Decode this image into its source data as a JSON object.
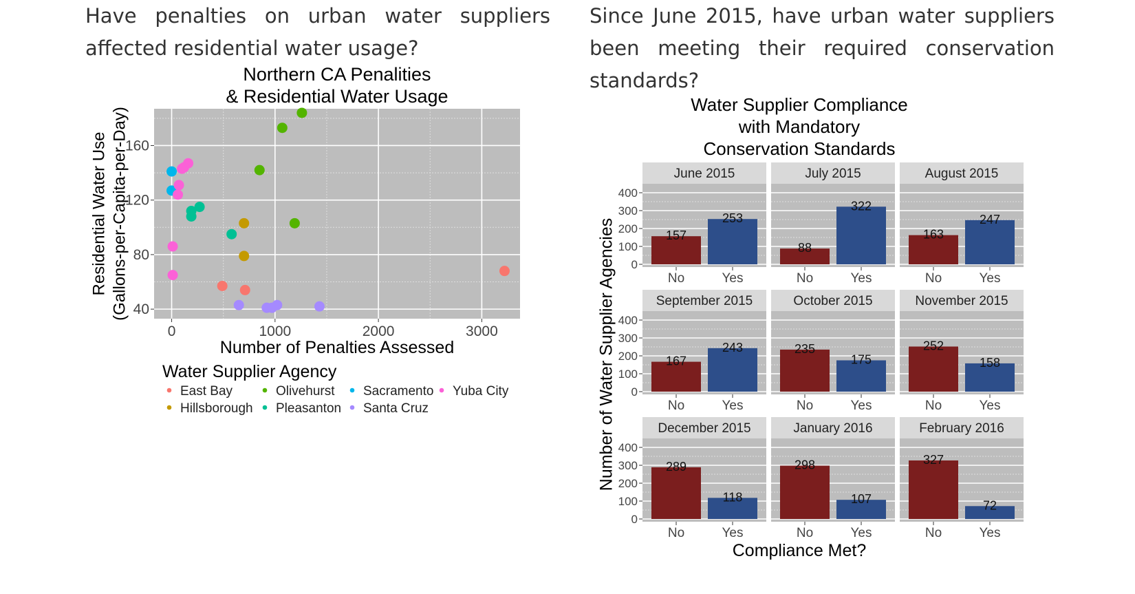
{
  "questions": {
    "left": "Have penalties on urban water suppliers affected residential water usage?",
    "right": "Since June 2015, have urban water suppliers been meeting their required conservation standards?"
  },
  "chart_data": [
    {
      "type": "scatter",
      "title": [
        "Northern CA Penalities",
        "& Residential Water Usage"
      ],
      "xlabel": "Number of Penalties Assessed",
      "ylabel": [
        "Residential Water Use",
        "(Gallons-per-Capita-per-Day)"
      ],
      "xlim": [
        -170,
        3370
      ],
      "ylim": [
        33,
        187
      ],
      "xticks": [
        0,
        1000,
        2000,
        3000
      ],
      "yticks": [
        40,
        80,
        120,
        160
      ],
      "grid": true,
      "legend_title": "Water Supplier Agency",
      "legend_position": "bottom",
      "series": [
        {
          "name": "East Bay",
          "color": "#F8766D",
          "points": [
            [
              490,
              57
            ],
            [
              710,
              54
            ],
            [
              3220,
              68
            ]
          ]
        },
        {
          "name": "Hillsborough",
          "color": "#C49A00",
          "points": [
            [
              700,
              103
            ],
            [
              700,
              79
            ]
          ]
        },
        {
          "name": "Olivehurst",
          "color": "#53B400",
          "points": [
            [
              1260,
              184
            ],
            [
              1070,
              173
            ],
            [
              850,
              142
            ],
            [
              1190,
              103
            ]
          ]
        },
        {
          "name": "Pleasanton",
          "color": "#00C094",
          "points": [
            [
              270,
              115
            ],
            [
              190,
              112
            ],
            [
              190,
              108
            ],
            [
              580,
              95
            ]
          ]
        },
        {
          "name": "Sacramento",
          "color": "#00B6EB",
          "points": [
            [
              0,
              141
            ],
            [
              0,
              127
            ]
          ]
        },
        {
          "name": "Santa Cruz",
          "color": "#A58AFF",
          "points": [
            [
              650,
              43
            ],
            [
              920,
              41
            ],
            [
              970,
              41
            ],
            [
              1020,
              43
            ],
            [
              1430,
              42
            ]
          ]
        },
        {
          "name": "Yuba City",
          "color": "#FB61D7",
          "points": [
            [
              160,
              147
            ],
            [
              120,
              144
            ],
            [
              100,
              143
            ],
            [
              70,
              131
            ],
            [
              60,
              124
            ],
            [
              10,
              86
            ],
            [
              10,
              65
            ]
          ]
        }
      ]
    },
    {
      "type": "bar",
      "title": [
        "Water Supplier Compliance",
        "with Mandatory",
        "Conservation Standards"
      ],
      "xlabel": "Compliance Met?",
      "ylabel": "Number of Water Supplier Agencies",
      "categories": [
        "No",
        "Yes"
      ],
      "ylim": [
        0,
        400
      ],
      "yticks": [
        0,
        100,
        200,
        300,
        400
      ],
      "colors": {
        "No": "#7B1E1E",
        "Yes": "#2D4E8A"
      },
      "panels": [
        {
          "label": "June 2015",
          "values": [
            157,
            253
          ]
        },
        {
          "label": "July 2015",
          "values": [
            88,
            322
          ]
        },
        {
          "label": "August 2015",
          "values": [
            163,
            247
          ]
        },
        {
          "label": "September 2015",
          "values": [
            167,
            243
          ]
        },
        {
          "label": "October 2015",
          "values": [
            235,
            175
          ]
        },
        {
          "label": "November 2015",
          "values": [
            252,
            158
          ]
        },
        {
          "label": "December 2015",
          "values": [
            289,
            118
          ]
        },
        {
          "label": "January 2016",
          "values": [
            298,
            107
          ]
        },
        {
          "label": "February 2016",
          "values": [
            327,
            72
          ]
        }
      ]
    }
  ]
}
